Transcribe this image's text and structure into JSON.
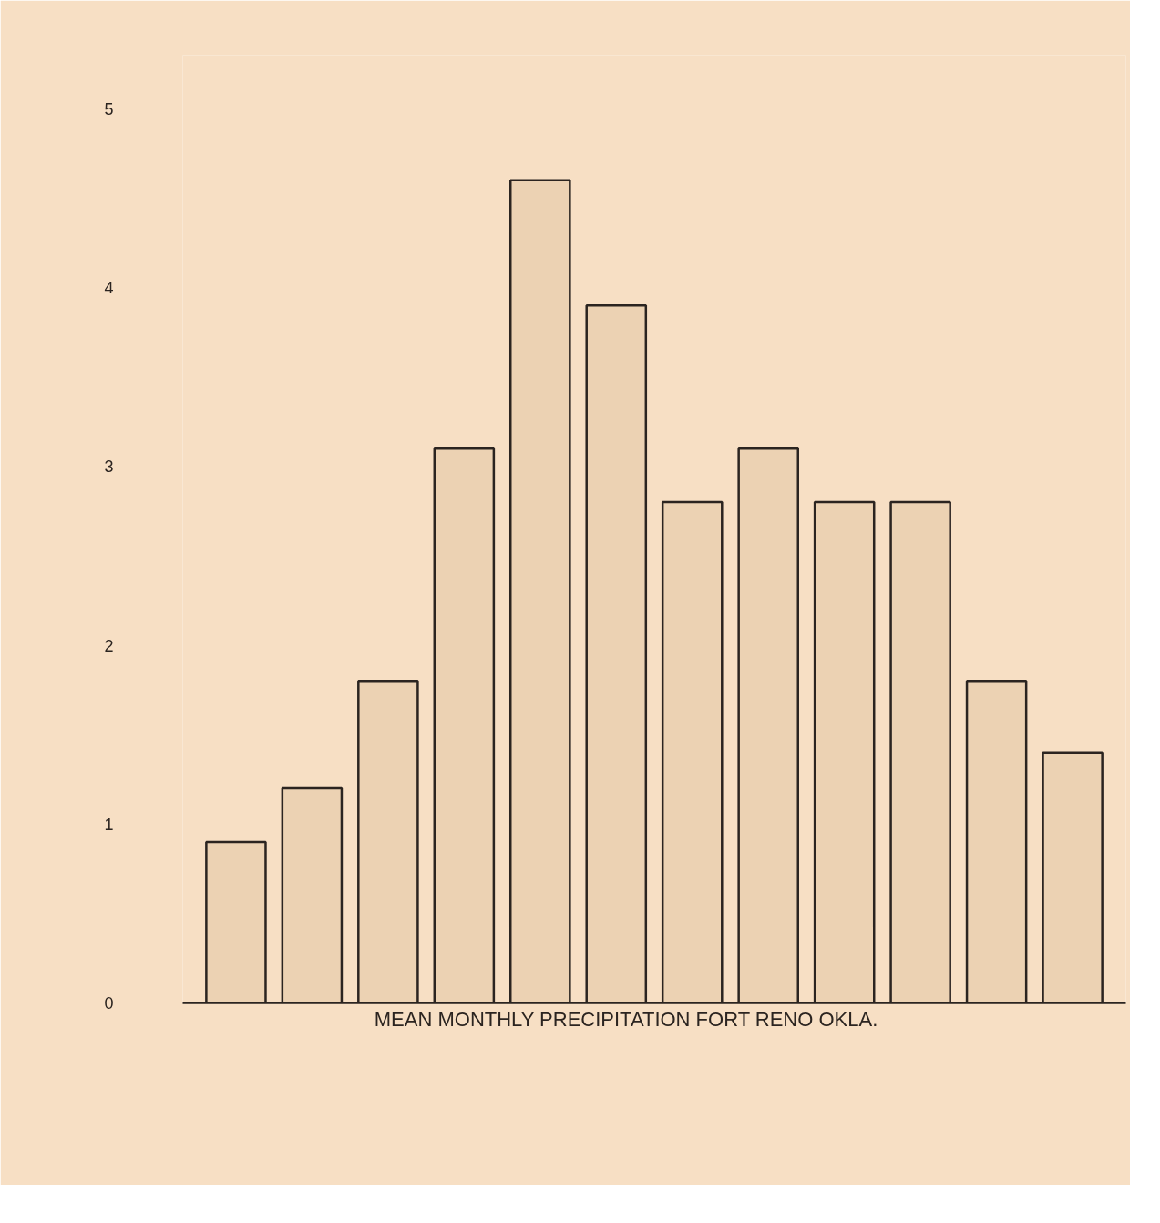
{
  "chart_data": {
    "type": "bar",
    "xlabel": "MEAN   MONTHLY   PRECIPITATION   FORT   RENO   OKLA.",
    "categories": [
      null,
      null,
      null,
      null,
      null,
      null,
      null,
      null,
      null,
      null,
      null,
      null
    ],
    "values": [
      0.9,
      1.2,
      1.8,
      3.1,
      4.6,
      3.9,
      2.8,
      3.1,
      2.8,
      2.8,
      1.8,
      1.4
    ],
    "color": "#ecd2b3",
    "ylim": [
      0,
      5.3
    ],
    "yticks": [
      0,
      1,
      2,
      3,
      4,
      5
    ],
    "grid": false
  }
}
